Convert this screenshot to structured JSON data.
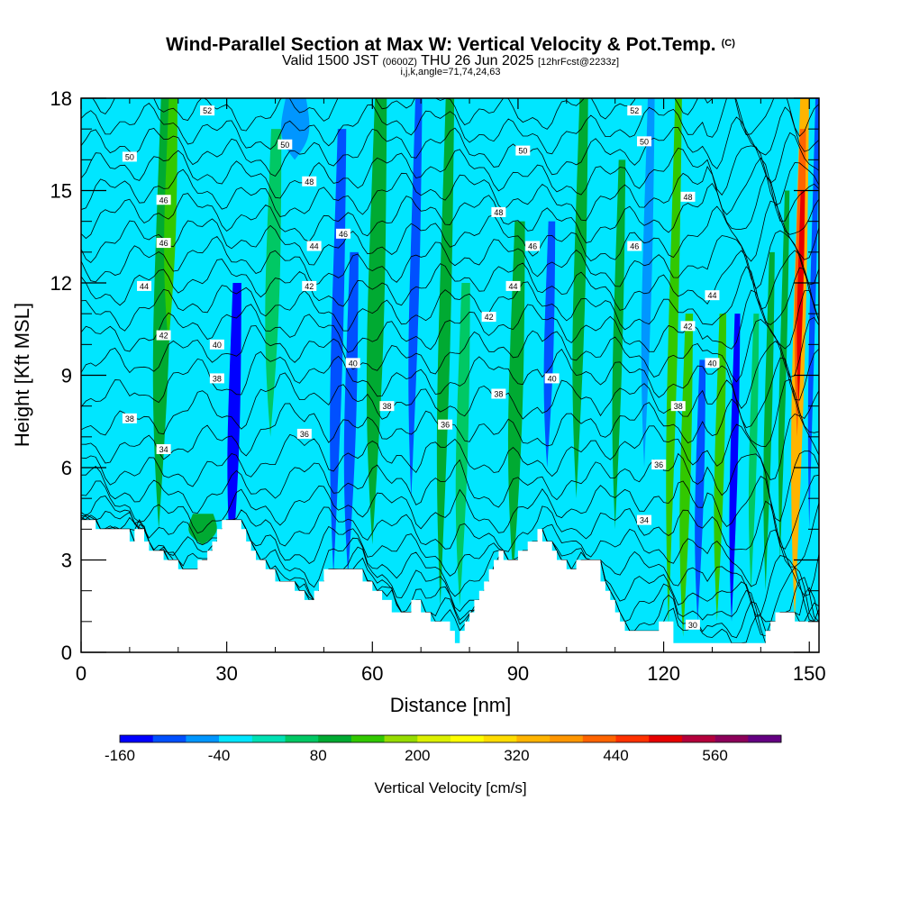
{
  "title": "Wind-Parallel Section at Max W: Vertical Velocity & Pot.Temp.",
  "title_superscript": "(C)",
  "subtitle_main": "Valid 1500 JST",
  "subtitle_small_a": "(0600Z)",
  "subtitle_date": "THU 26 Jun 2025",
  "subtitle_small_b": "[12hrFcst@2233z]",
  "subtitle_ijk": "i,j,k,angle=71,74,24,63",
  "chart_data": {
    "type": "heatmap",
    "xlabel": "Distance [nm]",
    "ylabel": "Height [Kft MSL]",
    "xlim": [
      0,
      152
    ],
    "ylim": [
      0,
      18
    ],
    "x_ticks": [
      0,
      30,
      60,
      90,
      120,
      150
    ],
    "y_ticks": [
      0,
      3,
      6,
      9,
      12,
      15,
      18
    ],
    "colorbar": {
      "label": "Vertical Velocity [cm/s]",
      "min": -160,
      "step": 40,
      "tick_labels": [
        "-160",
        "-40",
        "80",
        "200",
        "320",
        "440",
        "560"
      ],
      "tick_values": [
        -160,
        -40,
        80,
        200,
        320,
        440,
        560
      ],
      "colors": [
        "#0000ff",
        "#0050ff",
        "#0096ff",
        "#00e6ff",
        "#00e1b4",
        "#00c864",
        "#00aa32",
        "#32c800",
        "#96dc00",
        "#dcf000",
        "#ffff00",
        "#ffdc00",
        "#ffb400",
        "#ff9600",
        "#ff6400",
        "#ff3200",
        "#e60000",
        "#b4003c",
        "#8c005a",
        "#640082"
      ]
    },
    "background_color": "#00e6ff",
    "vertical_velocity_features": [
      {
        "x": 16,
        "width": 3.5,
        "ybot": 4.0,
        "ytop": 18,
        "value": 100
      },
      {
        "x": 18,
        "width": 2.5,
        "ybot": 10,
        "ytop": 18,
        "value": 120
      },
      {
        "x": 31,
        "width": 2.5,
        "ybot": 2.5,
        "ytop": 12,
        "value": -130
      },
      {
        "x": 25,
        "width": 6,
        "ybot": 3.5,
        "ytop": 4.5,
        "value": 90
      },
      {
        "x": 39,
        "width": 3,
        "ybot": 7,
        "ytop": 17,
        "value": 70
      },
      {
        "x": 44,
        "width": 6,
        "ybot": 16,
        "ytop": 18,
        "value": -50
      },
      {
        "x": 52,
        "width": 2.5,
        "ybot": 2.5,
        "ytop": 17,
        "value": -90
      },
      {
        "x": 55,
        "width": 2.5,
        "ybot": 2.5,
        "ytop": 13,
        "value": -100
      },
      {
        "x": 60,
        "width": 3.5,
        "ybot": 3.5,
        "ytop": 18,
        "value": 90
      },
      {
        "x": 68,
        "width": 2,
        "ybot": 5,
        "ytop": 18,
        "value": -110
      },
      {
        "x": 74,
        "width": 2.5,
        "ybot": 1.5,
        "ytop": 18,
        "value": 100
      },
      {
        "x": 78,
        "width": 2.5,
        "ybot": 1.5,
        "ytop": 12,
        "value": 70
      },
      {
        "x": 89,
        "width": 3,
        "ybot": 2.5,
        "ytop": 14,
        "value": 90
      },
      {
        "x": 96,
        "width": 2,
        "ybot": 6,
        "ytop": 14,
        "value": -100
      },
      {
        "x": 102,
        "width": 2.5,
        "ybot": 5,
        "ytop": 18,
        "value": 80
      },
      {
        "x": 110,
        "width": 2,
        "ybot": 4,
        "ytop": 16,
        "value": 90
      },
      {
        "x": 116,
        "width": 2,
        "ybot": 6,
        "ytop": 18,
        "value": -60
      },
      {
        "x": 121,
        "width": 2,
        "ybot": 0.8,
        "ytop": 18,
        "value": 120
      },
      {
        "x": 124,
        "width": 2.2,
        "ybot": 0.5,
        "ytop": 11,
        "value": 130
      },
      {
        "x": 127,
        "width": 1.8,
        "ybot": 1,
        "ytop": 9.5,
        "value": -120
      },
      {
        "x": 131,
        "width": 2,
        "ybot": 1,
        "ytop": 11,
        "value": 140
      },
      {
        "x": 134,
        "width": 1.6,
        "ybot": 1,
        "ytop": 11,
        "value": -140
      },
      {
        "x": 138,
        "width": 1.6,
        "ybot": 2,
        "ytop": 11,
        "value": 70
      },
      {
        "x": 141,
        "width": 1.6,
        "ybot": 2,
        "ytop": 13,
        "value": 90
      },
      {
        "x": 144,
        "width": 1.4,
        "ybot": 3,
        "ytop": 15,
        "value": 80
      },
      {
        "x": 147,
        "width": 2.6,
        "ybot": 1,
        "ytop": 18,
        "value": 330
      },
      {
        "x": 147.5,
        "width": 1.8,
        "ybot": 7,
        "ytop": 17,
        "value": 420
      },
      {
        "x": 147.8,
        "width": 1.2,
        "ybot": 8,
        "ytop": 15,
        "value": 500
      },
      {
        "x": 150,
        "width": 1.2,
        "ybot": 4,
        "ytop": 18,
        "value": -120
      }
    ],
    "terrain_height_kft": [
      [
        0,
        4.3
      ],
      [
        3,
        4.3
      ],
      [
        3,
        4.0
      ],
      [
        10,
        4.0
      ],
      [
        10,
        3.6
      ],
      [
        11,
        3.6
      ],
      [
        11,
        4.0
      ],
      [
        13,
        4.0
      ],
      [
        13,
        3.6
      ],
      [
        14,
        3.6
      ],
      [
        14,
        3.3
      ],
      [
        17,
        3.3
      ],
      [
        17,
        3.0
      ],
      [
        20,
        3.0
      ],
      [
        20,
        2.7
      ],
      [
        24,
        2.7
      ],
      [
        24,
        3.0
      ],
      [
        26,
        3.0
      ],
      [
        26,
        3.3
      ],
      [
        27,
        3.3
      ],
      [
        27,
        3.6
      ],
      [
        28,
        3.6
      ],
      [
        28,
        4.0
      ],
      [
        29,
        4.0
      ],
      [
        29,
        4.3
      ],
      [
        33,
        4.3
      ],
      [
        33,
        4.0
      ],
      [
        34,
        4.0
      ],
      [
        34,
        3.6
      ],
      [
        35,
        3.6
      ],
      [
        35,
        3.3
      ],
      [
        36,
        3.3
      ],
      [
        36,
        3.0
      ],
      [
        38,
        3.0
      ],
      [
        38,
        2.7
      ],
      [
        40,
        2.7
      ],
      [
        40,
        2.3
      ],
      [
        44,
        2.3
      ],
      [
        44,
        2.0
      ],
      [
        46,
        2.0
      ],
      [
        46,
        1.7
      ],
      [
        48,
        1.7
      ],
      [
        48,
        2.0
      ],
      [
        49,
        2.0
      ],
      [
        49,
        2.3
      ],
      [
        50,
        2.3
      ],
      [
        50,
        2.7
      ],
      [
        58,
        2.7
      ],
      [
        58,
        2.3
      ],
      [
        60,
        2.3
      ],
      [
        60,
        2.0
      ],
      [
        62,
        2.0
      ],
      [
        62,
        1.7
      ],
      [
        64,
        1.7
      ],
      [
        64,
        1.3
      ],
      [
        68,
        1.3
      ],
      [
        68,
        1.7
      ],
      [
        70,
        1.7
      ],
      [
        70,
        1.3
      ],
      [
        72,
        1.3
      ],
      [
        72,
        1.0
      ],
      [
        76,
        1.0
      ],
      [
        76,
        0.7
      ],
      [
        77,
        0.7
      ],
      [
        77,
        0.3
      ],
      [
        78,
        0.3
      ],
      [
        78,
        0.7
      ],
      [
        79,
        0.7
      ],
      [
        79,
        1.0
      ],
      [
        80,
        1.0
      ],
      [
        80,
        1.3
      ],
      [
        81,
        1.3
      ],
      [
        81,
        1.7
      ],
      [
        82,
        1.7
      ],
      [
        82,
        2.0
      ],
      [
        83,
        2.0
      ],
      [
        83,
        2.3
      ],
      [
        84,
        2.3
      ],
      [
        84,
        2.7
      ],
      [
        85,
        2.7
      ],
      [
        85,
        3.0
      ],
      [
        86,
        3.0
      ],
      [
        86,
        3.3
      ],
      [
        87,
        3.3
      ],
      [
        87,
        3.0
      ],
      [
        90,
        3.0
      ],
      [
        90,
        3.3
      ],
      [
        92,
        3.3
      ],
      [
        92,
        3.6
      ],
      [
        94,
        3.6
      ],
      [
        94,
        4.0
      ],
      [
        95,
        4.0
      ],
      [
        95,
        3.6
      ],
      [
        97,
        3.6
      ],
      [
        97,
        3.3
      ],
      [
        98,
        3.3
      ],
      [
        98,
        3.0
      ],
      [
        100,
        3.0
      ],
      [
        100,
        2.7
      ],
      [
        102,
        2.7
      ],
      [
        102,
        3.0
      ],
      [
        107,
        3.0
      ],
      [
        107,
        2.3
      ],
      [
        108,
        2.3
      ],
      [
        108,
        2.0
      ],
      [
        109,
        2.0
      ],
      [
        109,
        1.7
      ],
      [
        110,
        1.7
      ],
      [
        110,
        1.3
      ],
      [
        111,
        1.3
      ],
      [
        111,
        1.0
      ],
      [
        112,
        1.0
      ],
      [
        112,
        0.7
      ],
      [
        119,
        0.7
      ],
      [
        119,
        1.0
      ],
      [
        122,
        1.0
      ],
      [
        122,
        0.3
      ],
      [
        141,
        0.3
      ],
      [
        141,
        0.7
      ],
      [
        142,
        0.7
      ],
      [
        142,
        1.0
      ],
      [
        143,
        1.0
      ],
      [
        143,
        1.3
      ],
      [
        147,
        1.3
      ],
      [
        147,
        1.0
      ],
      [
        152,
        1.0
      ]
    ],
    "theta_contours_C": [
      28,
      29,
      30,
      31,
      32,
      33,
      34,
      35,
      36,
      37,
      38,
      39,
      40,
      41,
      42,
      43,
      44,
      45,
      46,
      47,
      48,
      49,
      50,
      51,
      52
    ],
    "contour_labels": [
      {
        "value": "52",
        "x": 26,
        "y": 17.6
      },
      {
        "value": "52",
        "x": 114,
        "y": 17.6
      },
      {
        "value": "50",
        "x": 10,
        "y": 16.1
      },
      {
        "value": "50",
        "x": 42,
        "y": 16.5
      },
      {
        "value": "50",
        "x": 91,
        "y": 16.3
      },
      {
        "value": "50",
        "x": 116,
        "y": 16.6
      },
      {
        "value": "48",
        "x": 47,
        "y": 15.3
      },
      {
        "value": "48",
        "x": 86,
        "y": 14.3
      },
      {
        "value": "48",
        "x": 125,
        "y": 14.8
      },
      {
        "value": "46",
        "x": 17,
        "y": 14.7
      },
      {
        "value": "46",
        "x": 17,
        "y": 13.3
      },
      {
        "value": "46",
        "x": 54,
        "y": 13.6
      },
      {
        "value": "46",
        "x": 93,
        "y": 13.2
      },
      {
        "value": "46",
        "x": 114,
        "y": 13.2
      },
      {
        "value": "44",
        "x": 13,
        "y": 11.9
      },
      {
        "value": "44",
        "x": 48,
        "y": 13.2
      },
      {
        "value": "44",
        "x": 89,
        "y": 11.9
      },
      {
        "value": "44",
        "x": 130,
        "y": 11.6
      },
      {
        "value": "42",
        "x": 17,
        "y": 10.3
      },
      {
        "value": "42",
        "x": 47,
        "y": 11.9
      },
      {
        "value": "42",
        "x": 84,
        "y": 10.9
      },
      {
        "value": "42",
        "x": 125,
        "y": 10.6
      },
      {
        "value": "40",
        "x": 28,
        "y": 10.0
      },
      {
        "value": "40",
        "x": 56,
        "y": 9.4
      },
      {
        "value": "40",
        "x": 97,
        "y": 8.9
      },
      {
        "value": "40",
        "x": 130,
        "y": 9.4
      },
      {
        "value": "38",
        "x": 28,
        "y": 8.9
      },
      {
        "value": "38",
        "x": 10,
        "y": 7.6
      },
      {
        "value": "38",
        "x": 63,
        "y": 8.0
      },
      {
        "value": "38",
        "x": 86,
        "y": 8.4
      },
      {
        "value": "38",
        "x": 123,
        "y": 8.0
      },
      {
        "value": "36",
        "x": 46,
        "y": 7.1
      },
      {
        "value": "36",
        "x": 75,
        "y": 7.4
      },
      {
        "value": "36",
        "x": 119,
        "y": 6.1
      },
      {
        "value": "34",
        "x": 17,
        "y": 6.6
      },
      {
        "value": "34",
        "x": 116,
        "y": 4.3
      },
      {
        "value": "30",
        "x": 126,
        "y": 0.9
      }
    ]
  }
}
